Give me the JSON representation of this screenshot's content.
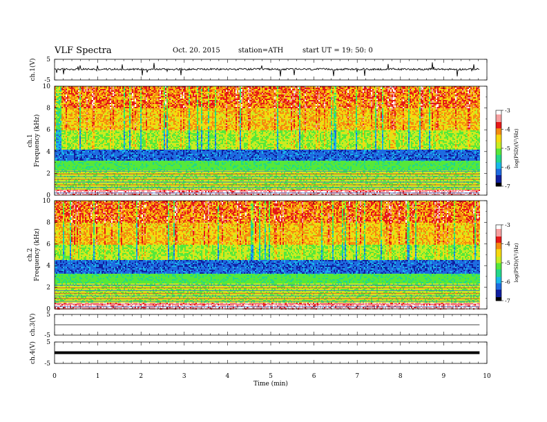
{
  "header": {
    "title": "VLF  Spectra",
    "date": "Oct. 20. 2015",
    "station": "station=ATH",
    "start": "start  UT =   19: 50: 0"
  },
  "colors": {
    "trace": "#000000",
    "colorbar_stops": [
      "#000000",
      "#1020a0",
      "#1e6be0",
      "#19b8e8",
      "#23d88a",
      "#56e83a",
      "#c8ec22",
      "#f6d90e",
      "#f48b10",
      "#e61818",
      "#f7a0a0",
      "#ffffff"
    ]
  },
  "chart_data": [
    {
      "type": "line",
      "name": "ch1-waveform",
      "ylabel": "ch.1(V)",
      "ylim": [
        -5,
        5
      ],
      "yticks": [
        "5",
        "-5"
      ],
      "xlim": [
        0,
        10
      ],
      "data_end": 9.83,
      "baseline": 0.2,
      "spike_amplitude": 3.5
    },
    {
      "type": "heatmap",
      "name": "ch1-spectrogram",
      "ylabel": "ch.1\nFrequency  (kHz)",
      "ylim": [
        0,
        10
      ],
      "yticks": [
        "0",
        "2",
        "4",
        "6",
        "8",
        "10"
      ],
      "xlim": [
        0,
        10
      ],
      "data_end": 9.83,
      "colorbar": {
        "label": "log(PSD)(V²/Hz)",
        "range": [
          -7,
          -3
        ],
        "ticks": [
          "-7",
          "-6",
          "-5",
          "-4",
          "-3"
        ]
      },
      "low_psd_band_khz": [
        3.2,
        4.2
      ]
    },
    {
      "type": "heatmap",
      "name": "ch2-spectrogram",
      "ylabel": "ch.2\nFrequency  (kHz)",
      "ylim": [
        0,
        10
      ],
      "yticks": [
        "0",
        "2",
        "4",
        "6",
        "8",
        "10"
      ],
      "xlim": [
        0,
        10
      ],
      "data_end": 9.83,
      "colorbar": {
        "label": "log(PSD)(V²/Hz)",
        "range": [
          -7,
          -3
        ],
        "ticks": [
          "-7",
          "-6",
          "-5",
          "-4",
          "-3"
        ]
      },
      "low_psd_band_khz": [
        3.3,
        4.6
      ]
    },
    {
      "type": "line",
      "name": "ch3-waveform",
      "ylabel": "ch.3(V)",
      "ylim": [
        -5,
        5
      ],
      "yticks": [
        "5",
        "-5"
      ],
      "xlim": [
        0,
        10
      ],
      "data_end": 9.83,
      "baseline": 0
    },
    {
      "type": "line",
      "name": "ch4-waveform",
      "ylabel": "ch.4(V)",
      "ylim": [
        -5,
        5
      ],
      "yticks": [
        "5",
        "-5"
      ],
      "xlim": [
        0,
        10
      ],
      "data_end": 9.83,
      "baseline": 0
    }
  ],
  "xaxis": {
    "label": "Time  (min)",
    "ticks": [
      "0",
      "1",
      "2",
      "3",
      "4",
      "5",
      "6",
      "7",
      "8",
      "9",
      "10"
    ]
  }
}
